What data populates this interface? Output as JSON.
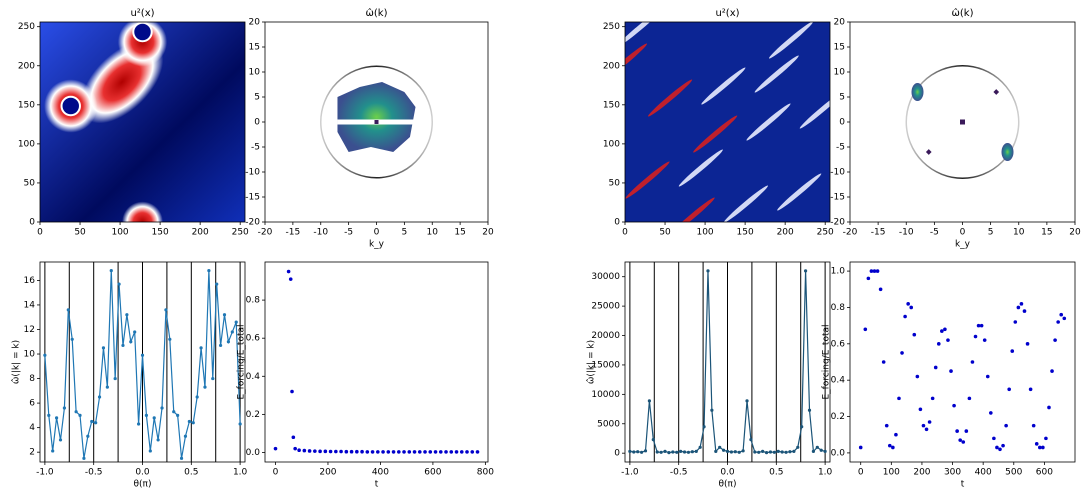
{
  "chart_data": [
    {
      "type": "heatmap",
      "title": "u²(x)",
      "xlim": [
        0,
        256
      ],
      "ylim": [
        0,
        256
      ],
      "xticks": [
        0,
        50,
        100,
        150,
        200,
        250
      ],
      "yticks": [
        0,
        50,
        100,
        150,
        200,
        250
      ]
    },
    {
      "type": "spectrum",
      "title": "ω̂(k)",
      "xlabel": "k_y",
      "xlim": [
        -20,
        20
      ],
      "ylim": [
        -20,
        20
      ],
      "xticks": [
        -20,
        -15,
        -10,
        -5,
        0,
        5,
        10,
        15,
        20
      ],
      "yticks": [
        -20,
        -15,
        -10,
        -5,
        0,
        5,
        10,
        15,
        20
      ]
    },
    {
      "type": "line",
      "xlabel": "θ(π)",
      "ylabel": "ω̂(|k| = k)",
      "color": "#1f77b4",
      "vline_color": "#000000",
      "xlim": [
        -1.05,
        1.05
      ],
      "ylim": [
        1.2,
        17.5
      ],
      "xticks": [
        {
          "value": -1,
          "label": "-1.0"
        },
        {
          "value": -0.5,
          "label": "-0.5"
        },
        {
          "value": 0,
          "label": "0.0"
        },
        {
          "value": 0.5,
          "label": "0.5"
        },
        {
          "value": 1,
          "label": "1.0"
        }
      ],
      "yticks": [
        2,
        4,
        6,
        8,
        10,
        12,
        14,
        16
      ],
      "vlines": [
        -1,
        -0.75,
        -0.5,
        -0.25,
        0,
        0.25,
        0.5,
        0.75,
        1
      ],
      "x": [
        -1,
        -0.96,
        -0.92,
        -0.88,
        -0.84,
        -0.8,
        -0.76,
        -0.72,
        -0.68,
        -0.64,
        -0.6,
        -0.56,
        -0.52,
        -0.48,
        -0.44,
        -0.4,
        -0.36,
        -0.32,
        -0.28,
        -0.24,
        -0.2,
        -0.16,
        -0.12,
        -0.08,
        -0.04,
        0,
        0.04,
        0.08,
        0.12,
        0.16,
        0.2,
        0.24,
        0.28,
        0.32,
        0.36,
        0.4,
        0.44,
        0.48,
        0.52,
        0.56,
        0.6,
        0.64,
        0.68,
        0.72,
        0.76,
        0.8,
        0.84,
        0.88,
        0.92,
        0.96,
        1
      ],
      "values": [
        9.9,
        5.0,
        2.1,
        4.8,
        3.0,
        5.6,
        13.6,
        11.2,
        5.3,
        5.0,
        1.5,
        3.3,
        4.5,
        4.4,
        6.5,
        10.5,
        7.3,
        16.8,
        8.0,
        15.7,
        10.7,
        13.2,
        11.0,
        11.8,
        4.3,
        9.9,
        5.0,
        2.1,
        4.8,
        3.0,
        5.6,
        13.6,
        11.2,
        5.3,
        5.0,
        1.5,
        3.3,
        4.5,
        4.4,
        6.5,
        10.5,
        7.3,
        16.8,
        8.0,
        15.7,
        10.7,
        13.2,
        11.0,
        11.8,
        12.6,
        4.3
      ]
    },
    {
      "type": "scatter",
      "xlabel": "t",
      "ylabel": "E_forcing/E_total",
      "color": "#0000cc",
      "xlim": [
        -40,
        810
      ],
      "ylim": [
        -0.05,
        1.0
      ],
      "xticks": [
        0,
        200,
        400,
        600,
        800
      ],
      "yticks": [
        {
          "value": 0,
          "label": "0.0"
        },
        {
          "value": 0.2,
          "label": "0.2"
        },
        {
          "value": 0.4,
          "label": "0.4"
        },
        {
          "value": 0.6,
          "label": "0.6"
        },
        {
          "value": 0.8,
          "label": "0.8"
        }
      ],
      "x": [
        0,
        50,
        58,
        63,
        68,
        75,
        90,
        110,
        130,
        150,
        170,
        190,
        210,
        230,
        250,
        270,
        290,
        310,
        330,
        350,
        370,
        390,
        410,
        430,
        450,
        470,
        490,
        510,
        530,
        550,
        570,
        590,
        610,
        630,
        650,
        670,
        690,
        710,
        730,
        750,
        770
      ],
      "values": [
        0.02,
        0.95,
        0.91,
        0.32,
        0.08,
        0.02,
        0.012,
        0.01,
        0.008,
        0.007,
        0.006,
        0.006,
        0.005,
        0.005,
        0.005,
        0.004,
        0.004,
        0.004,
        0.004,
        0.003,
        0.003,
        0.003,
        0.003,
        0.003,
        0.003,
        0.003,
        0.003,
        0.003,
        0.003,
        0.003,
        0.003,
        0.003,
        0.003,
        0.003,
        0.003,
        0.003,
        0.003,
        0.003,
        0.003,
        0.003,
        0.003
      ]
    },
    {
      "type": "heatmap",
      "title": "u²(x)",
      "xlim": [
        0,
        256
      ],
      "ylim": [
        0,
        256
      ],
      "xticks": [
        0,
        50,
        100,
        150,
        200,
        250
      ],
      "yticks": [
        0,
        50,
        100,
        150,
        200,
        250
      ]
    },
    {
      "type": "spectrum",
      "title": "ω̂(k)",
      "xlabel": "k_y",
      "xlim": [
        -20,
        20
      ],
      "ylim": [
        -20,
        20
      ],
      "xticks": [
        -20,
        -15,
        -10,
        -5,
        0,
        5,
        10,
        15,
        20
      ],
      "yticks": [
        -20,
        -15,
        -10,
        -5,
        0,
        5,
        10,
        15,
        20
      ]
    },
    {
      "type": "line",
      "xlabel": "θ(π)",
      "ylabel": "ω̂(|k| = k)",
      "color": "#1b5478",
      "vline_color": "#000000",
      "xlim": [
        -1.05,
        1.05
      ],
      "ylim": [
        -1500,
        32500
      ],
      "xticks": [
        {
          "value": -1,
          "label": "-1.0"
        },
        {
          "value": -0.5,
          "label": "-0.5"
        },
        {
          "value": 0,
          "label": "0.0"
        },
        {
          "value": 0.5,
          "label": "0.5"
        },
        {
          "value": 1,
          "label": "1.0"
        }
      ],
      "yticks": [
        0,
        5000,
        10000,
        15000,
        20000,
        25000,
        30000
      ],
      "vlines": [
        -1,
        -0.75,
        -0.5,
        -0.25,
        0,
        0.25,
        0.5,
        0.75,
        1
      ],
      "x": [
        -1,
        -0.96,
        -0.92,
        -0.88,
        -0.84,
        -0.8,
        -0.76,
        -0.72,
        -0.68,
        -0.64,
        -0.6,
        -0.56,
        -0.52,
        -0.48,
        -0.44,
        -0.4,
        -0.36,
        -0.32,
        -0.28,
        -0.24,
        -0.2,
        -0.16,
        -0.12,
        -0.08,
        -0.04,
        0,
        0.04,
        0.08,
        0.12,
        0.16,
        0.2,
        0.24,
        0.28,
        0.32,
        0.36,
        0.4,
        0.44,
        0.48,
        0.52,
        0.56,
        0.6,
        0.64,
        0.68,
        0.72,
        0.76,
        0.8,
        0.84,
        0.88,
        0.92,
        0.96,
        1
      ],
      "values": [
        300,
        200,
        250,
        150,
        400,
        8900,
        2300,
        200,
        150,
        300,
        100,
        200,
        150,
        300,
        200,
        150,
        250,
        300,
        1000,
        4500,
        31000,
        7300,
        300,
        1000,
        500,
        300,
        200,
        250,
        150,
        400,
        8900,
        2300,
        200,
        150,
        300,
        100,
        200,
        150,
        300,
        200,
        150,
        250,
        300,
        1000,
        4500,
        31000,
        7300,
        300,
        1000,
        500,
        300
      ]
    },
    {
      "type": "scatter",
      "xlabel": "t",
      "ylabel": "E_forcing/E_total",
      "color": "#0000cc",
      "xlim": [
        -35,
        700
      ],
      "ylim": [
        -0.05,
        1.05
      ],
      "xticks": [
        0,
        100,
        200,
        300,
        400,
        500,
        600
      ],
      "yticks": [
        {
          "value": 0,
          "label": "0.0"
        },
        {
          "value": 0.2,
          "label": "0.2"
        },
        {
          "value": 0.4,
          "label": "0.4"
        },
        {
          "value": 0.6,
          "label": "0.6"
        },
        {
          "value": 0.8,
          "label": "0.8"
        },
        {
          "value": 1,
          "label": "1.0"
        }
      ],
      "x": [
        0,
        15,
        25,
        35,
        45,
        55,
        65,
        75,
        85,
        95,
        105,
        115,
        125,
        135,
        145,
        155,
        165,
        175,
        185,
        195,
        205,
        215,
        225,
        235,
        245,
        255,
        265,
        275,
        285,
        295,
        305,
        315,
        325,
        335,
        345,
        355,
        365,
        375,
        385,
        395,
        405,
        415,
        425,
        435,
        445,
        455,
        465,
        475,
        485,
        495,
        505,
        515,
        525,
        535,
        545,
        555,
        565,
        575,
        585,
        595,
        605,
        615,
        625,
        635,
        645,
        655,
        665
      ],
      "values": [
        0.03,
        0.68,
        0.96,
        1.0,
        1.0,
        1.0,
        0.9,
        0.5,
        0.15,
        0.04,
        0.03,
        0.1,
        0.3,
        0.55,
        0.75,
        0.82,
        0.8,
        0.65,
        0.42,
        0.24,
        0.15,
        0.13,
        0.17,
        0.3,
        0.47,
        0.6,
        0.67,
        0.68,
        0.62,
        0.45,
        0.26,
        0.12,
        0.07,
        0.06,
        0.12,
        0.3,
        0.5,
        0.64,
        0.7,
        0.7,
        0.62,
        0.42,
        0.22,
        0.08,
        0.03,
        0.02,
        0.04,
        0.15,
        0.35,
        0.56,
        0.72,
        0.8,
        0.82,
        0.78,
        0.6,
        0.35,
        0.15,
        0.05,
        0.03,
        0.03,
        0.08,
        0.25,
        0.45,
        0.62,
        0.72,
        0.76,
        0.74
      ]
    }
  ]
}
